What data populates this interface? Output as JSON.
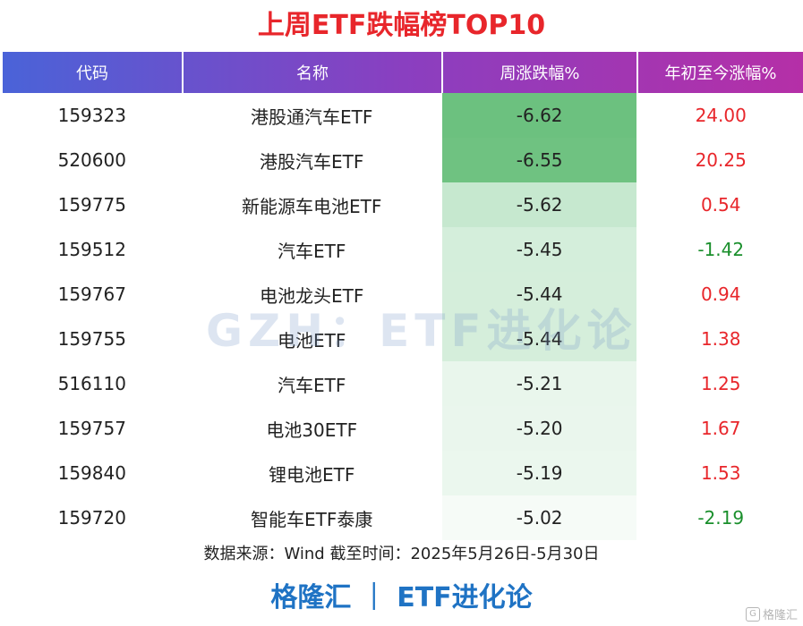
{
  "title": "上周ETF跌幅榜TOP10",
  "headers": [
    "代码",
    "名称",
    "周涨跌幅%",
    "年初至今涨幅%"
  ],
  "rows": [
    {
      "code": "159323",
      "name": "港股通汽车ETF",
      "week": "-6.62",
      "ytd": "24.00",
      "ytd_sign": "pos",
      "week_bg": "#6cc17f"
    },
    {
      "code": "520600",
      "name": "港股汽车ETF",
      "week": "-6.55",
      "ytd": "20.25",
      "ytd_sign": "pos",
      "week_bg": "#6fc281"
    },
    {
      "code": "159775",
      "name": "新能源车电池ETF",
      "week": "-5.62",
      "ytd": "0.54",
      "ytd_sign": "pos",
      "week_bg": "#c6e8cf"
    },
    {
      "code": "159512",
      "name": "汽车ETF",
      "week": "-5.45",
      "ytd": "-1.42",
      "ytd_sign": "neg",
      "week_bg": "#d4eedb"
    },
    {
      "code": "159767",
      "name": "电池龙头ETF",
      "week": "-5.44",
      "ytd": "0.94",
      "ytd_sign": "pos",
      "week_bg": "#d5eedb"
    },
    {
      "code": "159755",
      "name": "电池ETF",
      "week": "-5.44",
      "ytd": "1.38",
      "ytd_sign": "pos",
      "week_bg": "#d5eedb"
    },
    {
      "code": "516110",
      "name": "汽车ETF",
      "week": "-5.21",
      "ytd": "1.25",
      "ytd_sign": "pos",
      "week_bg": "#e9f6ec"
    },
    {
      "code": "159757",
      "name": "电池30ETF",
      "week": "-5.20",
      "ytd": "1.67",
      "ytd_sign": "pos",
      "week_bg": "#eaf6ed"
    },
    {
      "code": "159840",
      "name": "锂电池ETF",
      "week": "-5.19",
      "ytd": "1.53",
      "ytd_sign": "pos",
      "week_bg": "#ebf7ee"
    },
    {
      "code": "159720",
      "name": "智能车ETF泰康",
      "week": "-5.02",
      "ytd": "-2.19",
      "ytd_sign": "neg",
      "week_bg": "#f6fbf7"
    }
  ],
  "watermark": "GZH：ETF进化论",
  "source": "数据来源：Wind 截至时间：2025年5月26日-5月30日",
  "brand": "格隆汇 ｜ ETF进化论",
  "logo_text": "格隆汇",
  "logo_mark": "G"
}
